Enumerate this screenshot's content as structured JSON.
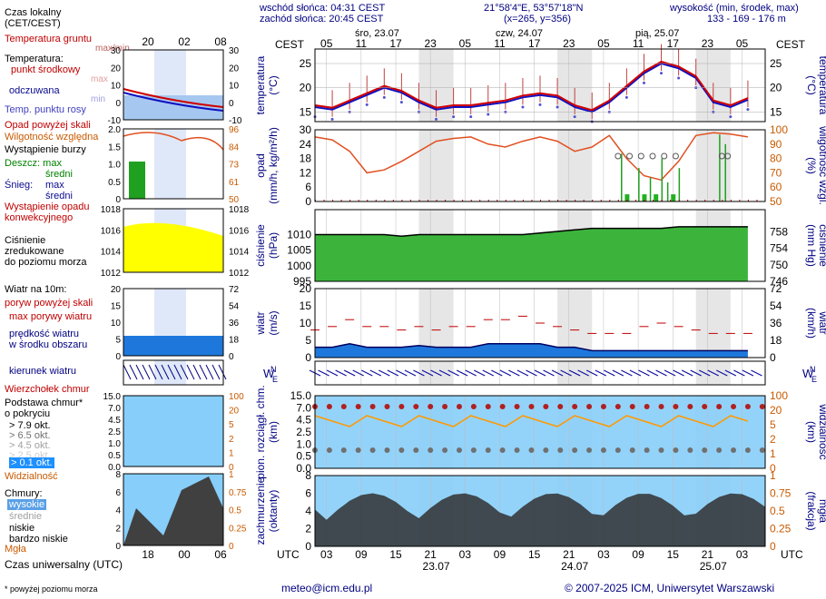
{
  "header": {
    "sunrise": "wschód słońca: 04:31 CEST",
    "sunset": "zachód słońca: 20:45 CEST",
    "coords": "21°58'4\"E, 53°57'18\"N",
    "grid": "(x=265, y=356)",
    "altitude_label": "wysokość (min, środek, max)",
    "altitude_values": "133 - 169 - 176 m",
    "tz_left": "CEST",
    "tz_right": "CEST",
    "utc_left": "UTC",
    "utc_right": "UTC"
  },
  "days": [
    {
      "label": "śro, 23.07"
    },
    {
      "label": "czw, 24.07"
    },
    {
      "label": "pią, 25.07"
    }
  ],
  "date_labels_bottom": [
    "23.07",
    "24.07",
    "25.07"
  ],
  "cest_ticks": [
    "05",
    "11",
    "17",
    "23",
    "05",
    "11",
    "17",
    "23",
    "05",
    "11",
    "17",
    "23",
    "05"
  ],
  "utc_ticks": [
    "03",
    "09",
    "15",
    "21",
    "03",
    "09",
    "15",
    "21",
    "03",
    "09",
    "15",
    "21",
    "03"
  ],
  "legend": {
    "local_time": "Czas lokalny",
    "local_time_sub": "(CET/CEST)",
    "local_ticks": [
      "20",
      "02",
      "08"
    ],
    "utc_ticks": [
      "18",
      "00",
      "06"
    ],
    "ground_temp": "Temperatura gruntu",
    "ground_temp_sub": "max/min",
    "temperature": "Temperatura:",
    "mid_point": "punkt środkowy",
    "max": "max",
    "min": "min",
    "perceived": "odczuwana",
    "dew_point": "Temp. punktu rosy",
    "fog_above": "Opad powyżej skali",
    "humidity": "Wilgotność względna",
    "storm": "Wystąpienie burzy",
    "rain": "Deszcz: max",
    "rain_mid": "średni",
    "snow": "Śnieg:",
    "snow_max": "max",
    "snow_mid": "średni",
    "precip_occ": "Wystąpienie opadu",
    "precip_occ2": "konwekcyjnego",
    "pressure": "Ciśnienie",
    "pressure2": "zredukowane",
    "pressure3": "do poziomu morza",
    "wind": "Wiatr na 10m:",
    "gust_above": "poryw powyżej skali",
    "max_gust": "max porywy wiatru",
    "wind_speed": "prędkość wiatru",
    "wind_speed2": "w środku obszaru",
    "wind_dir": "kierunek wiatru",
    "cloud_top": "Wierzchołek chmur",
    "cloud_base": "Podstawa chmur*",
    "cloud_base2": "o pokryciu",
    "okt79": "> 7.9 okt.",
    "okt65": "> 6.5 okt.",
    "okt45": "> 4.5 okt.",
    "okt25": "> 2.5 okt.",
    "okt01": "> 0.1 okt.",
    "visibility": "Widzialność",
    "clouds": "Chmury:",
    "high": "wysokie",
    "middle": "średnie",
    "low": "niskie",
    "very_low": "bardzo niskie",
    "fog": "Mgła",
    "utc_time": "Czas uniwersalny (UTC)",
    "footnote": "* powyżej poziomu morza"
  },
  "panels": {
    "temp": {
      "ylabel": "temperatura",
      "unit": "(°C)",
      "ticks": [
        15,
        20,
        25
      ]
    },
    "precip": {
      "ylabel": "opad",
      "unit": "(mm/h, kg/m²/h)",
      "ticks": [
        0,
        6,
        12,
        18,
        24,
        30
      ],
      "ylabel_r": "wilgotność wzgl.",
      "unit_r": "(%)",
      "ticks_r": [
        50,
        60,
        70,
        80,
        90,
        100
      ]
    },
    "pressure": {
      "ylabel": "ciśnienie",
      "unit": "(hPa)",
      "ticks": [
        995,
        1000,
        1005,
        1010
      ],
      "ylabel_r": "ciśnienie",
      "unit_r": "(mm Hg)",
      "ticks_r": [
        746,
        750,
        754,
        758
      ]
    },
    "wind": {
      "ylabel": "wiatr",
      "unit": "(m/s)",
      "ticks": [
        0,
        5,
        10,
        15,
        20
      ],
      "ylabel_r": "wiatr",
      "unit_r": "(km/h)",
      "ticks_r": [
        0,
        18,
        36,
        54,
        72
      ]
    },
    "cloudbase": {
      "ylabel": "pion. rozciągł. chm.",
      "unit": "(km)",
      "ticks": [
        "0.0",
        "0.5",
        "1.0",
        "2.5",
        "4.5",
        "7.0",
        "15.0"
      ],
      "ylabel_r": "widzialność",
      "unit_r": "(km)",
      "ticks_r": [
        "0",
        "1",
        "2",
        "5",
        "20",
        "100"
      ]
    },
    "cover": {
      "ylabel": "zachmurzenie",
      "unit": "(oktanty)",
      "ticks": [
        0,
        2,
        4,
        6,
        8
      ],
      "ylabel_r": "mgła",
      "unit_r": "(frakcja)",
      "ticks_r": [
        "0",
        "0.25",
        "0.5",
        "0.75",
        "1"
      ]
    }
  },
  "legend_ticks": {
    "temp_l": [
      "-10",
      "0",
      "10",
      "20",
      "30"
    ],
    "temp_r": [
      "-10",
      "0",
      "10",
      "20",
      "30"
    ],
    "hum_l": [
      "0",
      "0.5",
      "1.0",
      "1.5",
      "2.0"
    ],
    "hum_r": [
      "50",
      "61",
      "73",
      "84",
      "96"
    ],
    "pres_l": [
      "1012",
      "1014",
      "1016",
      "1018"
    ],
    "pres_r": [
      "1012",
      "1014",
      "1016",
      "1018"
    ],
    "wind_l": [
      "0",
      "5",
      "10",
      "15",
      "20"
    ],
    "wind_r": [
      "0",
      "18",
      "36",
      "54",
      "72"
    ],
    "cb_l": [
      "0.0",
      "0.5",
      "1.0",
      "2.5",
      "4.5",
      "7.0",
      "15.0"
    ],
    "cb_r": [
      "0",
      "1",
      "2",
      "5",
      "20",
      "100"
    ],
    "cov_l": [
      "0",
      "2",
      "4",
      "6",
      "8"
    ],
    "cov_r": [
      "0",
      "0.25",
      "0.5",
      "0.75",
      "1"
    ]
  },
  "chart_data": {
    "type": "line",
    "x_hours_from_cest_05_23_07": [
      -2,
      1,
      4,
      7,
      10,
      13,
      16,
      19,
      22,
      25,
      28,
      31,
      34,
      37,
      40,
      43,
      46,
      49,
      52,
      55,
      58,
      61,
      64,
      67,
      70,
      73
    ],
    "temperature_mid": [
      16,
      15.5,
      17,
      18.5,
      20,
      19,
      17,
      15.5,
      16,
      16,
      16.5,
      17,
      18,
      18.5,
      18,
      16,
      15,
      17,
      20,
      23,
      25,
      24,
      22,
      17,
      16,
      17.5
    ],
    "humidity": [
      95,
      93,
      85,
      70,
      72,
      78,
      85,
      92,
      94,
      95,
      90,
      88,
      92,
      95,
      92,
      85,
      88,
      96,
      80,
      68,
      65,
      78,
      96,
      98,
      97,
      95
    ],
    "pressure": [
      1010,
      1010,
      1010,
      1010,
      1010,
      1009.5,
      1010,
      1010,
      1010,
      1010,
      1010,
      1010,
      1010,
      1010.5,
      1011,
      1011.5,
      1012,
      1012,
      1012,
      1012,
      1012,
      1012.5,
      1012.5,
      1012.5,
      1012.5,
      1012.5
    ],
    "wind_speed": [
      3,
      3,
      4,
      3,
      3,
      3,
      3.5,
      3,
      3,
      3,
      4,
      4,
      4,
      4,
      3,
      3,
      2,
      2,
      2,
      2,
      2,
      2,
      2,
      2,
      2,
      2
    ],
    "max_gust": [
      8,
      9,
      11,
      9,
      9,
      8,
      9,
      8,
      9,
      9,
      11,
      11,
      12,
      10,
      9,
      8,
      7,
      7,
      7,
      9,
      10,
      9,
      8,
      7,
      7,
      7
    ],
    "precip_days": [
      "śro, 23.07",
      "czw, 24.07",
      "pią, 25.07"
    ]
  }
}
